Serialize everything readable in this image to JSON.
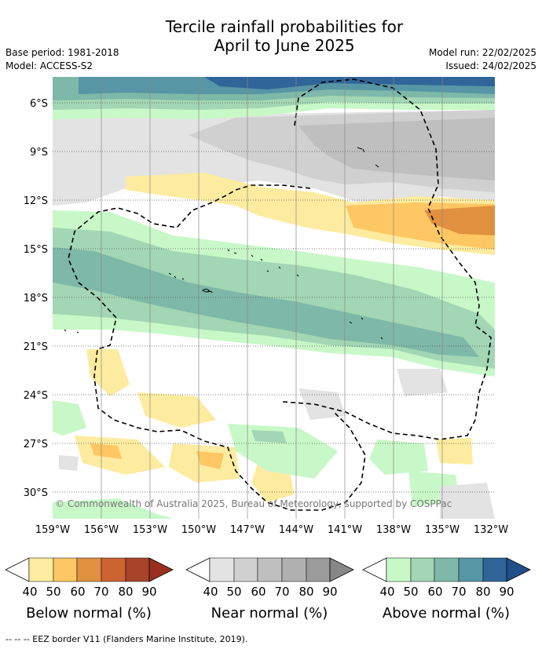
{
  "header": {
    "title_line1": "Tercile rainfall probabilities for",
    "title_line2": "April to June 2025",
    "base_period": "Base period: 1981-2018",
    "model": "Model: ACCESS-S2",
    "model_run": "Model run: 22/02/2025",
    "issued": "Issued: 24/02/2025"
  },
  "map": {
    "lat_labels": [
      "6°S",
      "9°S",
      "12°S",
      "15°S",
      "18°S",
      "21°S",
      "24°S",
      "27°S",
      "30°S"
    ],
    "lon_labels": [
      "159°W",
      "156°W",
      "153°W",
      "150°W",
      "147°W",
      "144°W",
      "141°W",
      "138°W",
      "135°W",
      "132°W"
    ],
    "copyright": "© Commonwealth of Australia 2025, Bureau of Meteorology, supported by COSPPac"
  },
  "legends": {
    "below": {
      "label": "Below normal (%)",
      "ticks": [
        "40",
        "50",
        "60",
        "70",
        "80",
        "90"
      ],
      "colors": [
        "#fdeb9f",
        "#fec763",
        "#e0903f",
        "#cc6331",
        "#a8442a"
      ]
    },
    "near": {
      "label": "Near normal (%)",
      "ticks": [
        "40",
        "50",
        "60",
        "70",
        "80",
        "90"
      ],
      "colors": [
        "#e3e3e3",
        "#d0d0d0",
        "#bfbfbf",
        "#b0b0b0",
        "#9b9b9b"
      ]
    },
    "above": {
      "label": "Above normal (%)",
      "ticks": [
        "40",
        "50",
        "60",
        "70",
        "80",
        "90"
      ],
      "colors": [
        "#c8f8c8",
        "#a2d6b4",
        "#7eb8a8",
        "#5796a4",
        "#2f6598"
      ]
    }
  },
  "footer": "-- -- -- EEZ border V11 (Flanders Marine Institute, 2019)."
}
